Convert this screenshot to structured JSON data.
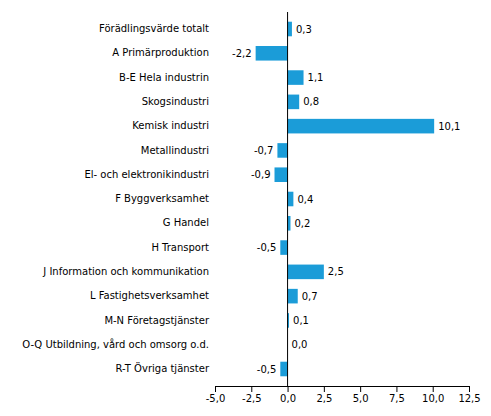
{
  "chart_data": {
    "type": "bar",
    "orientation": "horizontal",
    "categories": [
      "Förädlingsvärde totalt",
      "A Primärproduktion",
      "B-E Hela industrin",
      "Skogsindustri",
      "Kemisk industri",
      "Metallindustri",
      "El- och elektronikindustri",
      "F Byggverksamhet",
      "G Handel",
      "H Transport",
      "J Information och kommunikation",
      "L Fastighetsverksamhet",
      "M-N Företagstjänster",
      "O-Q Utbildning, vård och omsorg o.d.",
      "R-T Övriga tjänster"
    ],
    "values": [
      0.3,
      -2.2,
      1.1,
      0.8,
      10.1,
      -0.7,
      -0.9,
      0.4,
      0.2,
      -0.5,
      2.5,
      0.7,
      0.1,
      0.0,
      -0.5
    ],
    "value_labels": [
      "0,3",
      "-2,2",
      "1,1",
      "0,8",
      "10,1",
      "-0,7",
      "-0,9",
      "0,4",
      "0,2",
      "-0,5",
      "2,5",
      "0,7",
      "0,1",
      "0,0",
      "-0,5"
    ],
    "data_labels": true,
    "color": "#1b9cd8",
    "xlim": [
      -5.0,
      12.5
    ],
    "xticks": [
      {
        "value": -5.0,
        "label": "-5,0"
      },
      {
        "value": -2.5,
        "label": "-2,5"
      },
      {
        "value": 0.0,
        "label": "0,0"
      },
      {
        "value": 2.5,
        "label": "2,5"
      },
      {
        "value": 5.0,
        "label": "5,0"
      },
      {
        "value": 7.5,
        "label": "7,5"
      },
      {
        "value": 10.0,
        "label": "10,0"
      },
      {
        "value": 12.5,
        "label": "12,5"
      }
    ],
    "grid": false
  }
}
